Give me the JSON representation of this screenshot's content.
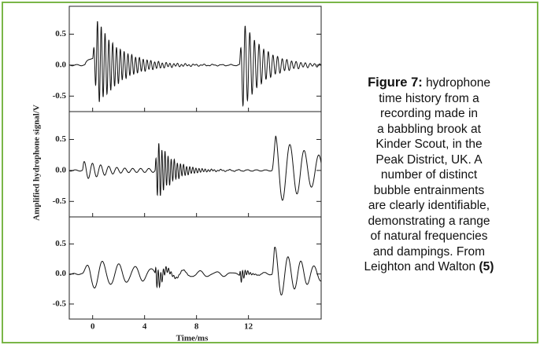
{
  "figure": {
    "ylabel": "Amplified hydrophone signal/V",
    "xlabel": "Time/ms",
    "xlim": [
      -1.8,
      17.6
    ],
    "xticks": [
      0,
      4,
      8,
      12
    ],
    "panels": [
      {
        "ylim": [
          -0.75,
          0.95
        ],
        "yticks": [
          {
            "value": 0.5,
            "label": "0.5"
          },
          {
            "value": 0,
            "label": "0.0"
          },
          {
            "value": -0.5,
            "label": "-0.5"
          }
        ]
      },
      {
        "ylim": [
          -0.75,
          0.95
        ],
        "yticks": [
          {
            "value": 0.5,
            "label": "0.5"
          },
          {
            "value": 0,
            "label": "0.0"
          },
          {
            "value": -0.5,
            "label": "-0.5"
          }
        ]
      },
      {
        "ylim": [
          -0.75,
          0.95
        ],
        "yticks": [
          {
            "value": 0.5,
            "label": "0.5"
          },
          {
            "value": 0,
            "label": "0.0"
          },
          {
            "value": -0.5,
            "label": "-0.5"
          }
        ]
      }
    ]
  },
  "caption": {
    "label": "Figure 7:",
    "lines": [
      "hydrophone",
      "time history from a",
      "recording made in",
      "a babbling brook at",
      "Kinder Scout, in the",
      "Peak District, UK. A",
      "number of distinct",
      "bubble entrainments",
      "are clearly identifiable,",
      "demonstrating  a range",
      "of natural frequencies",
      "and dampings. From",
      "Leighton and Walton"
    ],
    "ref": "(5)"
  }
}
